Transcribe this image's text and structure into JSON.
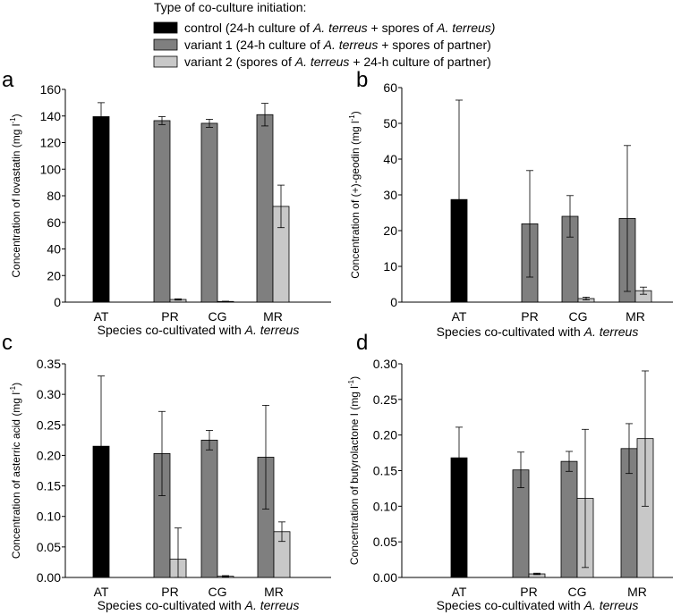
{
  "legend": {
    "title": "Type of co-culture initiation:",
    "entries": [
      {
        "key": "control",
        "color": "#000000",
        "parts": [
          {
            "t": "control (24-h culture of "
          },
          {
            "t": "A. terreus",
            "i": true
          },
          {
            "t": " + spores of "
          },
          {
            "t": "A. terreus)",
            "i": true
          }
        ]
      },
      {
        "key": "variant1",
        "color": "#7f7f7f",
        "parts": [
          {
            "t": "variant 1 (24-h culture of "
          },
          {
            "t": "A. terreus",
            "i": true
          },
          {
            "t": " + spores of partner)"
          }
        ]
      },
      {
        "key": "variant2",
        "color": "#c8c8c8",
        "parts": [
          {
            "t": "variant 2 (spores of "
          },
          {
            "t": "A. terreus",
            "i": true
          },
          {
            "t": " + 24-h culture of partner)"
          }
        ]
      }
    ]
  },
  "chart_data": [
    {
      "type": "bar",
      "panel": "a",
      "categories": [
        "AT",
        "PR",
        "CG",
        "MR"
      ],
      "ylabel": "Concentration of lovastatin (mg l-1)",
      "ylabel_base": "Concentration of lovastatin (mg l",
      "ylabel_sup": "-1",
      "ylabel_tail": ")",
      "xlabel_parts": [
        {
          "t": "Species co-cultivated with "
        },
        {
          "t": "A. terreus",
          "i": true
        }
      ],
      "ylim": [
        0,
        160
      ],
      "yticks": [
        "0",
        "20",
        "40",
        "60",
        "80",
        "100",
        "120",
        "140",
        "160"
      ],
      "series": [
        {
          "name": "control",
          "values": [
            139.5,
            null,
            null,
            null
          ],
          "errors": [
            10.5,
            null,
            null,
            null
          ]
        },
        {
          "name": "variant 1",
          "values": [
            null,
            136.5,
            134.5,
            141
          ],
          "errors": [
            null,
            3,
            3,
            8.5
          ]
        },
        {
          "name": "variant 2",
          "values": [
            null,
            2,
            0.5,
            72
          ],
          "errors": [
            null,
            0.5,
            0.2,
            16
          ]
        }
      ]
    },
    {
      "type": "bar",
      "panel": "b",
      "categories": [
        "AT",
        "PR",
        "CG",
        "MR"
      ],
      "ylabel": "Concentration of (+)-geodin (mg l-1)",
      "ylabel_base": "Concentration of (+)-geodin (mg l",
      "ylabel_sup": "-1",
      "ylabel_tail": ")",
      "xlabel_parts": [
        {
          "t": "Species co-cultivated with "
        },
        {
          "t": "A. terreus",
          "i": true
        }
      ],
      "ylim": [
        0,
        60
      ],
      "yticks": [
        "0",
        "10",
        "20",
        "30",
        "40",
        "50",
        "60"
      ],
      "series": [
        {
          "name": "control",
          "values": [
            28.7,
            null,
            null,
            null
          ],
          "errors": [
            27.8,
            null,
            null,
            null
          ]
        },
        {
          "name": "variant 1",
          "values": [
            null,
            21.9,
            24,
            23.4
          ],
          "errors": [
            null,
            14.9,
            5.8,
            20.4
          ]
        },
        {
          "name": "variant 2",
          "values": [
            null,
            null,
            1,
            3.2
          ],
          "errors": [
            null,
            null,
            0.4,
            1
          ]
        }
      ]
    },
    {
      "type": "bar",
      "panel": "c",
      "categories": [
        "AT",
        "PR",
        "CG",
        "MR"
      ],
      "ylabel": "Concentration of asterric acid (mg l-1)",
      "ylabel_base": "Concentration of asterric acid (mg l",
      "ylabel_sup": "-1",
      "ylabel_tail": ")",
      "xlabel_parts": [
        {
          "t": "Species co-cultivated with "
        },
        {
          "t": "A. terreus",
          "i": true
        }
      ],
      "ylim": [
        0,
        0.35
      ],
      "yticks": [
        "0.00",
        "0.05",
        "0.10",
        "0.15",
        "0.20",
        "0.25",
        "0.30",
        "0.35"
      ],
      "series": [
        {
          "name": "control",
          "values": [
            0.215,
            null,
            null,
            null
          ],
          "errors": [
            0.115,
            null,
            null,
            null
          ]
        },
        {
          "name": "variant 1",
          "values": [
            null,
            0.203,
            0.225,
            0.197
          ],
          "errors": [
            null,
            0.069,
            0.016,
            0.085
          ]
        },
        {
          "name": "variant 2",
          "values": [
            null,
            0.03,
            0.002,
            0.075
          ],
          "errors": [
            null,
            0.051,
            0.001,
            0.016
          ]
        }
      ]
    },
    {
      "type": "bar",
      "panel": "d",
      "categories": [
        "AT",
        "PR",
        "CG",
        "MR"
      ],
      "ylabel": "Concentration of butyrolactone I (mg l-1)",
      "ylabel_base": "Concentration of butyrolactone I (mg l",
      "ylabel_sup": "-1",
      "ylabel_tail": ")",
      "xlabel_parts": [
        {
          "t": "Species co-cultivated with "
        },
        {
          "t": "A. terreus",
          "i": true
        }
      ],
      "ylim": [
        0,
        0.3
      ],
      "yticks": [
        "0.00",
        "0.05",
        "0.10",
        "0.15",
        "0.20",
        "0.25",
        "0.30"
      ],
      "series": [
        {
          "name": "control",
          "values": [
            0.168,
            null,
            null,
            null
          ],
          "errors": [
            0.043,
            null,
            null,
            null
          ]
        },
        {
          "name": "variant 1",
          "values": [
            null,
            0.151,
            0.163,
            0.181
          ],
          "errors": [
            null,
            0.025,
            0.014,
            0.035
          ]
        },
        {
          "name": "variant 2",
          "values": [
            null,
            0.005,
            0.111,
            0.195
          ],
          "errors": [
            null,
            0.001,
            0.097,
            0.095
          ]
        }
      ]
    }
  ]
}
